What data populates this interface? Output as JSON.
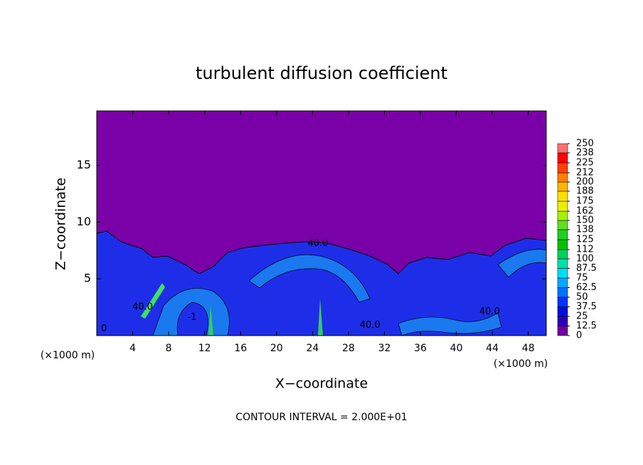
{
  "chart_data": {
    "type": "contour",
    "title": "turbulent diffusion coefficient",
    "x_label": "X−coordinate",
    "y_label": "Z−coordinate",
    "x_unit_left": "(×1000 m)",
    "x_unit_right": "(×1000 m)",
    "footer": "CONTOUR INTERVAL = 2.000E+01",
    "xlim": [
      0,
      50
    ],
    "ylim": [
      0,
      19.8
    ],
    "xticks": [
      4,
      8,
      12,
      16,
      20,
      24,
      28,
      32,
      36,
      40,
      44,
      48
    ],
    "yticks": [
      5,
      10,
      15
    ],
    "colorbar": {
      "ticks": [
        0,
        12.5,
        25,
        37.5,
        50,
        62.5,
        75,
        87.5,
        100,
        112,
        125,
        138,
        150,
        162,
        175,
        188,
        200,
        212,
        225,
        238,
        250
      ],
      "colors": [
        "#7000a0",
        "#2a00b4",
        "#0010d8",
        "#0034ff",
        "#0070ff",
        "#00a8ff",
        "#00dcf0",
        "#00e0a8",
        "#00d060",
        "#00c000",
        "#20d020",
        "#60e020",
        "#a8f000",
        "#e8f000",
        "#ffe000",
        "#ffb400",
        "#ff8000",
        "#ff4000",
        "#ff0000",
        "#ff7070"
      ]
    },
    "annotations": [
      {
        "text": "40.0",
        "x": 24.6,
        "y": 8.1
      },
      {
        "text": "40.0",
        "x": 5.1,
        "y": 2.5
      },
      {
        "text": "40.0",
        "x": 30.4,
        "y": 0.9
      },
      {
        "text": "40.0",
        "x": 43.7,
        "y": 2.1
      },
      {
        "text": "-1",
        "x": 10.6,
        "y": 1.6
      },
      {
        "text": "0",
        "x": 0.8,
        "y": 0.6
      }
    ]
  }
}
